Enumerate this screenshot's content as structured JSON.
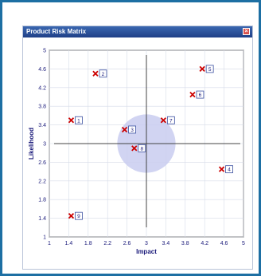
{
  "window": {
    "title": "Product Risk Matrix",
    "close_glyph": "×"
  },
  "chart_data": {
    "type": "scatter",
    "title": "Product Risk Matrix",
    "xlabel": "Impact",
    "ylabel": "Likelihood",
    "xlim": [
      1,
      5
    ],
    "ylim": [
      1,
      5
    ],
    "x_ticks": [
      "1",
      "1.4",
      "1.8",
      "2.2",
      "2.6",
      "3",
      "3.4",
      "3.8",
      "4.2",
      "4.6",
      "5"
    ],
    "y_ticks": [
      "1",
      "1.4",
      "1.8",
      "2.2",
      "2.6",
      "3",
      "3.4",
      "3.8",
      "4.2",
      "4.6",
      "5"
    ],
    "grid": true,
    "crosshair": {
      "x": 3,
      "y": 3
    },
    "highlight_circle": {
      "cx": 3,
      "cy": 3,
      "r": 0.6,
      "color": "#c9cdf0"
    },
    "marker_color": "#cc0000",
    "points": [
      {
        "label": "1",
        "x": 1.45,
        "y": 3.5
      },
      {
        "label": "2",
        "x": 1.95,
        "y": 4.5
      },
      {
        "label": "3",
        "x": 2.55,
        "y": 3.3
      },
      {
        "label": "4",
        "x": 4.55,
        "y": 2.45
      },
      {
        "label": "5",
        "x": 4.15,
        "y": 4.6
      },
      {
        "label": "6",
        "x": 3.95,
        "y": 4.05
      },
      {
        "label": "7",
        "x": 3.35,
        "y": 3.5
      },
      {
        "label": "8",
        "x": 2.75,
        "y": 2.9
      },
      {
        "label": "9",
        "x": 1.45,
        "y": 1.45
      }
    ]
  }
}
